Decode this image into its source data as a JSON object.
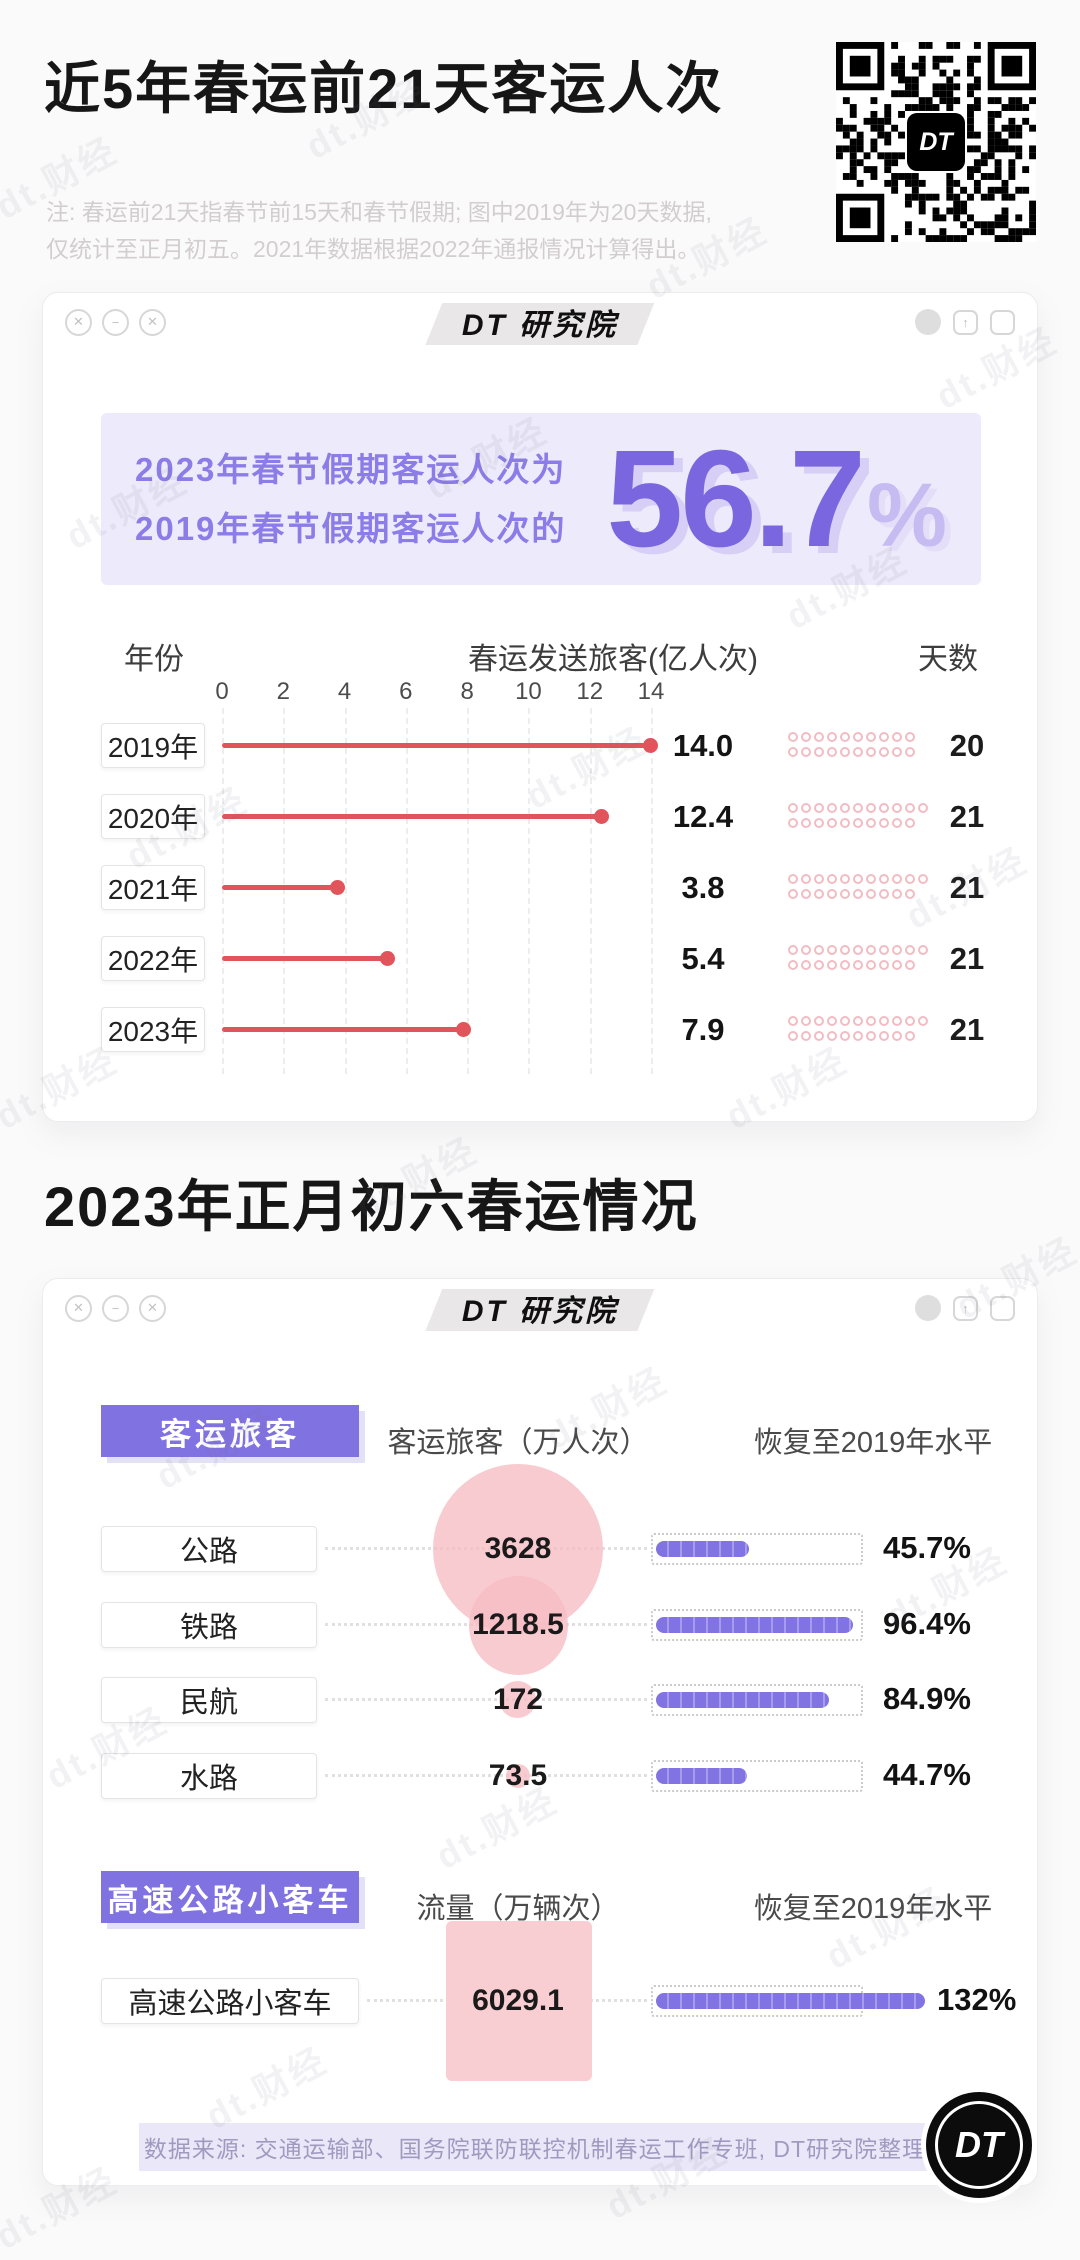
{
  "meta": {
    "watermark": "dt.财经"
  },
  "header": {
    "title": "近5年春运前21天客运人次",
    "note_line1": "注: 春运前21天指春节前15天和春节假期; 图中2019年为20天数据,",
    "note_line2": "仅统计至正月初五。2021年数据根据2022年通报情况计算得出。"
  },
  "window": {
    "brand": "DT 研究院",
    "controls": {
      "close": "✕",
      "minimize": "−",
      "expand": "✕",
      "share": "↑"
    }
  },
  "highlight": {
    "line1": "2023年春节假期客运人次为",
    "line2": "2019年春节假期客运人次的",
    "value": "56.7",
    "unit": "%"
  },
  "section2_title": "2023年正月初六春运情况",
  "footer": {
    "source": "数据来源: 交通运输部、国务院联防联控机制春运工作专班, DT研究院整理"
  },
  "logo": {
    "dt": "DT"
  },
  "colors": {
    "purple": "#8172e2",
    "purple_light": "#edeafb",
    "red": "#e2545b",
    "pink": "#f6bdc3",
    "note_gray": "#d2cecf"
  },
  "chart_data": [
    {
      "type": "bar",
      "title": "近5年春运前21天客运人次",
      "orientation": "horizontal-lollipop",
      "columns": {
        "year": "年份",
        "passengers": "春运发送旅客(亿人次)",
        "days": "天数"
      },
      "categories": [
        "2019年",
        "2020年",
        "2021年",
        "2022年",
        "2023年"
      ],
      "values": [
        14.0,
        12.4,
        3.8,
        5.4,
        7.9
      ],
      "value_labels": [
        "14.0",
        "12.4",
        "3.8",
        "5.4",
        "7.9"
      ],
      "days": [
        20,
        21,
        21,
        21,
        21
      ],
      "xlim": [
        0,
        14
      ],
      "xticks": [
        0,
        2,
        4,
        6,
        8,
        10,
        12,
        14
      ],
      "highlight_ratio": "56.7%"
    },
    {
      "type": "bar",
      "title": "2023年正月初六春运情况",
      "groups": [
        {
          "badge": "客运旅客",
          "volume_header": "客运旅客（万人次）",
          "recovery_header": "恢复至2019年水平",
          "rows": [
            {
              "label": "公路",
              "volume": 3628,
              "volume_label": "3628",
              "recovery_pct": 45.7,
              "recovery_label": "45.7%"
            },
            {
              "label": "铁路",
              "volume": 1218.5,
              "volume_label": "1218.5",
              "recovery_pct": 96.4,
              "recovery_label": "96.4%"
            },
            {
              "label": "民航",
              "volume": 172,
              "volume_label": "172",
              "recovery_pct": 84.9,
              "recovery_label": "84.9%"
            },
            {
              "label": "水路",
              "volume": 73.5,
              "volume_label": "73.5",
              "recovery_pct": 44.7,
              "recovery_label": "44.7%"
            }
          ]
        },
        {
          "badge": "高速公路小客车",
          "volume_header": "流量（万辆次）",
          "recovery_header": "恢复至2019年水平",
          "rows": [
            {
              "label": "高速公路小客车",
              "volume": 6029.1,
              "volume_label": "6029.1",
              "recovery_pct": 132,
              "recovery_label": "132%"
            }
          ]
        }
      ]
    }
  ]
}
